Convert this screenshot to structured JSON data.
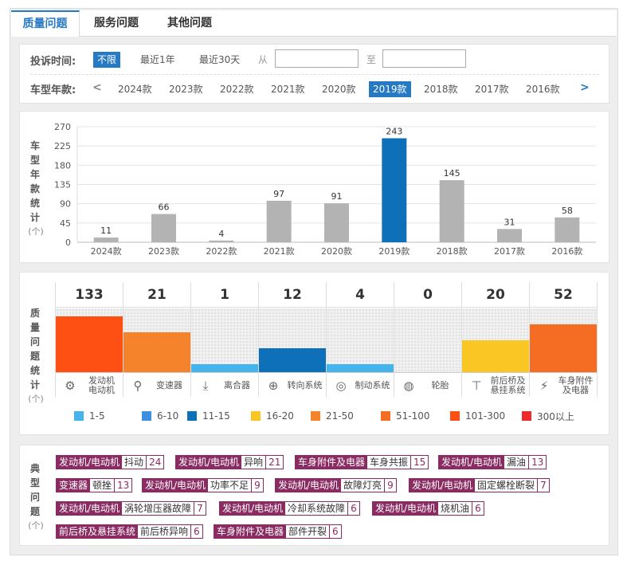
{
  "tabs": [
    "质量问题",
    "服务问题",
    "其他问题"
  ],
  "filter": {
    "time_label": "投诉时间:",
    "time_options": [
      "不限",
      "最近1年",
      "最近30天"
    ],
    "from_label": "从",
    "to_label": "至",
    "from_value": "",
    "to_value": "",
    "year_label": "车型年款:",
    "prev": "<",
    "next": ">",
    "years": [
      "2024款",
      "2023款",
      "2022款",
      "2021款",
      "2020款",
      "2019款",
      "2018款",
      "2017款",
      "2016款"
    ],
    "selected_year": "2019款"
  },
  "year_stats": {
    "label_chars": [
      "车",
      "型",
      "年",
      "款",
      "统",
      "计"
    ],
    "unit": "(个)"
  },
  "quality_stats": {
    "label_chars": [
      "质",
      "量",
      "问",
      "题",
      "统",
      "计"
    ],
    "unit": "(个)",
    "categories": [
      {
        "name": "发动机\n电动机",
        "count": "133",
        "value": 133,
        "color": "#ff5014",
        "icon": "engine-icon",
        "glyph": "⚙"
      },
      {
        "name": "变速器",
        "count": "21",
        "value": 21,
        "color": "#f5832b",
        "icon": "gear-shift-icon",
        "glyph": "⚲"
      },
      {
        "name": "离合器",
        "count": "1",
        "value": 1,
        "color": "#45b4ec",
        "icon": "clutch-icon",
        "glyph": "⤓"
      },
      {
        "name": "转向系统",
        "count": "12",
        "value": 12,
        "color": "#0e70b8",
        "icon": "steering-wheel-icon",
        "glyph": "⊕"
      },
      {
        "name": "制动系统",
        "count": "4",
        "value": 4,
        "color": "#45b4ec",
        "icon": "brake-disc-icon",
        "glyph": "◎"
      },
      {
        "name": "轮胎",
        "count": "0",
        "value": 0,
        "color": "#45b4ec",
        "icon": "tire-icon",
        "glyph": "◍"
      },
      {
        "name": "前后桥及\n悬挂系统",
        "count": "20",
        "value": 20,
        "color": "#f9c623",
        "icon": "axle-icon",
        "glyph": "⊤"
      },
      {
        "name": "车身附件\n及电器",
        "count": "52",
        "value": 52,
        "color": "#f56c23",
        "icon": "battery-icon",
        "glyph": "⚡"
      }
    ],
    "legend": [
      {
        "label": "1-5",
        "color": "#45b4ec"
      },
      {
        "label": "6-10",
        "color": "#3f8fe0"
      },
      {
        "label": "11-15",
        "color": "#0e70b8"
      },
      {
        "label": "16-20",
        "color": "#f9c623"
      },
      {
        "label": "21-50",
        "color": "#f5832b"
      },
      {
        "label": "51-100",
        "color": "#f56c23"
      },
      {
        "label": "101-300",
        "color": "#ff5014"
      },
      {
        "label": "300以上",
        "color": "#ee2a2a"
      }
    ]
  },
  "typical_issues": {
    "label_chars": [
      "典",
      "型",
      "问",
      "题"
    ],
    "unit": "(个)",
    "tags": [
      {
        "category": "发动机/电动机",
        "problem": "抖动",
        "count": "24"
      },
      {
        "category": "发动机/电动机",
        "problem": "异响",
        "count": "21"
      },
      {
        "category": "车身附件及电器",
        "problem": "车身共振",
        "count": "15"
      },
      {
        "category": "发动机/电动机",
        "problem": "漏油",
        "count": "13"
      },
      {
        "category": "变速器",
        "problem": "顿挫",
        "count": "13"
      },
      {
        "category": "发动机/电动机",
        "problem": "功率不足",
        "count": "9"
      },
      {
        "category": "发动机/电动机",
        "problem": "故障灯亮",
        "count": "9"
      },
      {
        "category": "发动机/电动机",
        "problem": "固定螺栓断裂",
        "count": "7"
      },
      {
        "category": "发动机/电动机",
        "problem": "涡轮增压器故障",
        "count": "7"
      },
      {
        "category": "发动机/电动机",
        "problem": "冷却系统故障",
        "count": "6"
      },
      {
        "category": "发动机/电动机",
        "problem": "烧机油",
        "count": "6"
      },
      {
        "category": "前后桥及悬挂系统",
        "problem": "前后桥异响",
        "count": "6"
      },
      {
        "category": "车身附件及电器",
        "problem": "部件开裂",
        "count": "6"
      }
    ]
  },
  "chart_data": [
    {
      "type": "bar",
      "categories": [
        "2024款",
        "2023款",
        "2022款",
        "2021款",
        "2020款",
        "2019款",
        "2018款",
        "2017款",
        "2016款"
      ],
      "values": [
        11,
        66,
        4,
        97,
        91,
        243,
        145,
        31,
        58
      ],
      "ylabel": "车型年款统计(个)",
      "ylim": [
        0,
        270
      ],
      "yticks": [
        0,
        45,
        90,
        135,
        180,
        225,
        270
      ],
      "highlight_category": "2019款",
      "bar_color": "#b3b3b3",
      "highlight_color": "#0e70b8",
      "grid": true
    },
    {
      "type": "bar",
      "categories": [
        "发动机 电动机",
        "变速器",
        "离合器",
        "转向系统",
        "制动系统",
        "轮胎",
        "前后桥及 悬挂系统",
        "车身附件 及电器"
      ],
      "values": [
        133,
        21,
        1,
        12,
        4,
        0,
        20,
        52
      ],
      "ylabel": "质量问题统计(个)"
    }
  ]
}
